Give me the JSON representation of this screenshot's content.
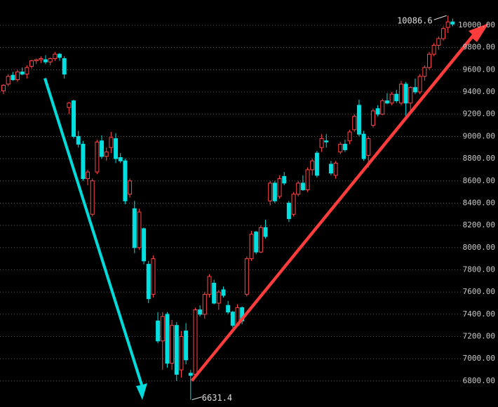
{
  "chart_data": {
    "type": "candlestick",
    "up_color": "#ff4646",
    "down_color": "#00e0e0",
    "grid": true,
    "ylim": [
      6566,
      10227
    ],
    "yticks": [
      {
        "value": 6800,
        "label": "6800.00"
      },
      {
        "value": 7000,
        "label": "7000.00"
      },
      {
        "value": 7200,
        "label": "7200.00"
      },
      {
        "value": 7400,
        "label": "7400.00"
      },
      {
        "value": 7600,
        "label": "7600.00"
      },
      {
        "value": 7800,
        "label": "7800.00"
      },
      {
        "value": 8000,
        "label": "8000.00"
      },
      {
        "value": 8200,
        "label": "8200.00"
      },
      {
        "value": 8400,
        "label": "8400.00"
      },
      {
        "value": 8600,
        "label": "8600.00"
      },
      {
        "value": 8800,
        "label": "8800.00"
      },
      {
        "value": 9000,
        "label": "9000.00"
      },
      {
        "value": 9200,
        "label": "9200.00"
      },
      {
        "value": 9400,
        "label": "9400.00"
      },
      {
        "value": 9600,
        "label": "9600.00"
      },
      {
        "value": 9800,
        "label": "9800.00"
      },
      {
        "value": 10000,
        "label": "10000.00"
      }
    ],
    "annotations": [
      {
        "text": "10086.6"
      },
      {
        "text": "6631.4"
      }
    ],
    "candles": [
      [
        9410,
        9470,
        9380,
        9460
      ],
      [
        9470,
        9560,
        9450,
        9540
      ],
      [
        9550,
        9580,
        9500,
        9510
      ],
      [
        9510,
        9600,
        9490,
        9580
      ],
      [
        9580,
        9620,
        9550,
        9560
      ],
      [
        9560,
        9640,
        9520,
        9620
      ],
      [
        9630,
        9690,
        9610,
        9680
      ],
      [
        9680,
        9700,
        9650,
        9690
      ],
      [
        9690,
        9720,
        9660,
        9700
      ],
      [
        9690,
        9730,
        9650,
        9670
      ],
      [
        9670,
        9710,
        9640,
        9700
      ],
      [
        9700,
        9760,
        9680,
        9740
      ],
      [
        9740,
        9750,
        9680,
        9710
      ],
      [
        9700,
        9720,
        9520,
        9560
      ],
      [
        9260,
        9310,
        9200,
        9300
      ],
      [
        9320,
        9330,
        8980,
        9000
      ],
      [
        9000,
        9050,
        8900,
        8930
      ],
      [
        8930,
        8960,
        8600,
        8620
      ],
      [
        8620,
        8700,
        8560,
        8680
      ],
      [
        8300,
        8620,
        8280,
        8600
      ],
      [
        8680,
        8970,
        8660,
        8950
      ],
      [
        8960,
        9010,
        8800,
        8820
      ],
      [
        8820,
        8900,
        8780,
        8860
      ],
      [
        8900,
        9040,
        8850,
        8990
      ],
      [
        8980,
        9030,
        8760,
        8800
      ],
      [
        8810,
        8850,
        8760,
        8780
      ],
      [
        8780,
        8800,
        8390,
        8420
      ],
      [
        8480,
        8620,
        8450,
        8600
      ],
      [
        8350,
        8420,
        7950,
        8000
      ],
      [
        8000,
        8350,
        7980,
        8320
      ],
      [
        8170,
        8180,
        7850,
        7880
      ],
      [
        7850,
        7880,
        7500,
        7540
      ],
      [
        7580,
        7930,
        7550,
        7900
      ],
      [
        7340,
        7420,
        7140,
        7160
      ],
      [
        7160,
        7420,
        6900,
        7380
      ],
      [
        7400,
        7420,
        6920,
        6960
      ],
      [
        6960,
        7350,
        6900,
        7300
      ],
      [
        7300,
        7330,
        6800,
        6860
      ],
      [
        6900,
        7250,
        6830,
        7200
      ],
      [
        7250,
        7320,
        6950,
        6990
      ],
      [
        6870,
        6900,
        6631.4,
        6850
      ],
      [
        6860,
        7460,
        6840,
        7440
      ],
      [
        7440,
        7480,
        7380,
        7400
      ],
      [
        7400,
        7600,
        7360,
        7580
      ],
      [
        7580,
        7760,
        7550,
        7740
      ],
      [
        7680,
        7710,
        7490,
        7500
      ],
      [
        7500,
        7620,
        7440,
        7600
      ],
      [
        7620,
        7650,
        7550,
        7570
      ],
      [
        7480,
        7520,
        7400,
        7420
      ],
      [
        7420,
        7430,
        7280,
        7300
      ],
      [
        7300,
        7490,
        7290,
        7460
      ],
      [
        7460,
        7470,
        7310,
        7340
      ],
      [
        7580,
        7920,
        7560,
        7900
      ],
      [
        7900,
        8150,
        7880,
        8120
      ],
      [
        8140,
        8150,
        7940,
        7960
      ],
      [
        7960,
        8200,
        7950,
        8180
      ],
      [
        8180,
        8250,
        8080,
        8100
      ],
      [
        8420,
        8600,
        8380,
        8580
      ],
      [
        8580,
        8600,
        8400,
        8420
      ],
      [
        8460,
        8650,
        8440,
        8620
      ],
      [
        8640,
        8680,
        8560,
        8580
      ],
      [
        8400,
        8420,
        8230,
        8260
      ],
      [
        8300,
        8500,
        8280,
        8480
      ],
      [
        8480,
        8600,
        8460,
        8580
      ],
      [
        8580,
        8650,
        8510,
        8520
      ],
      [
        8520,
        8720,
        8500,
        8700
      ],
      [
        8700,
        8800,
        8650,
        8780
      ],
      [
        8850,
        8870,
        8630,
        8650
      ],
      [
        8900,
        9020,
        8860,
        8980
      ],
      [
        8960,
        9020,
        8900,
        8950
      ],
      [
        8750,
        8780,
        8650,
        8670
      ],
      [
        8650,
        8780,
        8620,
        8760
      ],
      [
        8860,
        8950,
        8840,
        8930
      ],
      [
        8930,
        8970,
        8860,
        8880
      ],
      [
        8960,
        9060,
        8930,
        9040
      ],
      [
        9060,
        9200,
        9040,
        9180
      ],
      [
        9280,
        9330,
        9000,
        9020
      ],
      [
        9020,
        9050,
        8780,
        8800
      ],
      [
        8830,
        9000,
        8720,
        8980
      ],
      [
        9100,
        9250,
        9080,
        9230
      ],
      [
        9250,
        9280,
        9180,
        9200
      ],
      [
        9200,
        9340,
        9190,
        9320
      ],
      [
        9320,
        9390,
        9290,
        9300
      ],
      [
        9300,
        9400,
        9280,
        9380
      ],
      [
        9380,
        9420,
        9300,
        9320
      ],
      [
        9300,
        9500,
        9280,
        9470
      ],
      [
        9470,
        9490,
        9160,
        9300
      ],
      [
        9300,
        9450,
        9200,
        9440
      ],
      [
        9440,
        9520,
        9380,
        9400
      ],
      [
        9400,
        9560,
        9380,
        9540
      ],
      [
        9540,
        9640,
        9500,
        9620
      ],
      [
        9620,
        9760,
        9600,
        9740
      ],
      [
        9740,
        9840,
        9720,
        9820
      ],
      [
        9820,
        9900,
        9780,
        9880
      ],
      [
        9880,
        9990,
        9860,
        9970
      ],
      [
        9980,
        10086.6,
        9930,
        10030
      ],
      [
        10030,
        10060,
        9990,
        10010
      ]
    ]
  }
}
